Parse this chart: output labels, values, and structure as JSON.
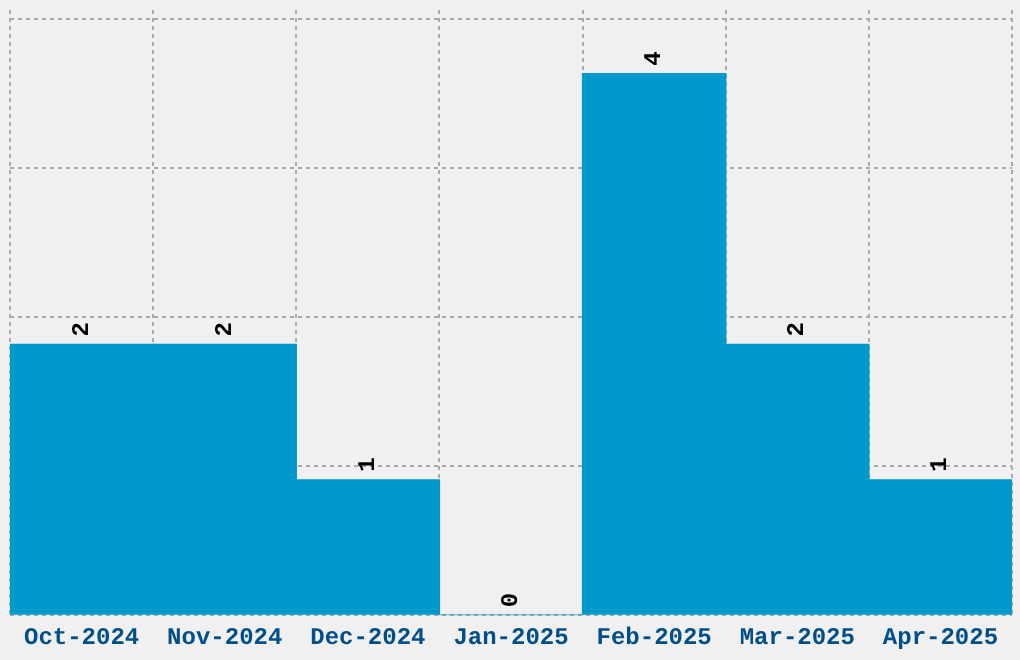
{
  "chart_data": {
    "type": "bar",
    "categories": [
      "Oct-2024",
      "Nov-2024",
      "Dec-2024",
      "Jan-2025",
      "Feb-2025",
      "Mar-2025",
      "Apr-2025"
    ],
    "values": [
      2,
      2,
      1,
      0,
      4,
      2,
      1
    ],
    "color": "#0099cc",
    "ylim": [
      0,
      4.47
    ],
    "yticks": [
      {
        "value": 0,
        "label": null
      },
      {
        "value": 1.1,
        "label": null
      },
      {
        "value": 2.2,
        "label": null
      },
      {
        "value": 3.3,
        "label": null
      },
      {
        "value": 4.4,
        "label": null
      }
    ],
    "tick_labels": "x",
    "grid": true,
    "data_labels": true,
    "legend": false
  }
}
